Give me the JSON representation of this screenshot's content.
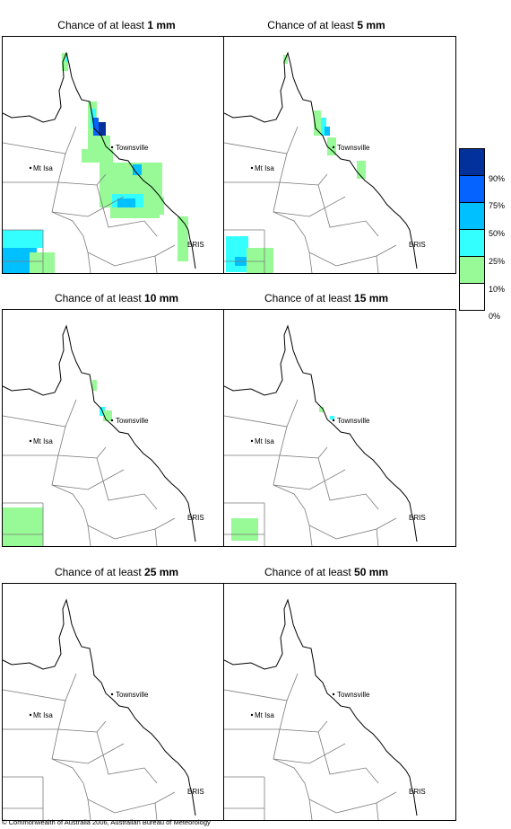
{
  "panels": [
    {
      "prefix": "Chance of at least ",
      "amount": "1 mm"
    },
    {
      "prefix": "Chance of at least ",
      "amount": "5 mm"
    },
    {
      "prefix": "Chance of at least ",
      "amount": "10 mm"
    },
    {
      "prefix": "Chance of at least ",
      "amount": "15 mm"
    },
    {
      "prefix": "Chance of at least ",
      "amount": "25 mm"
    },
    {
      "prefix": "Chance of at least ",
      "amount": "50 mm"
    }
  ],
  "places": {
    "townsville": "Townsville",
    "mt_isa": "Mt Isa",
    "brisbane": "BRIS"
  },
  "legend": {
    "labels": [
      "90%",
      "75%",
      "50%",
      "25%",
      "10%",
      "0%"
    ],
    "colors": [
      "#02319b",
      "#0563ff",
      "#00c0ff",
      "#33ffff",
      "#97fa97",
      "#ffffff"
    ]
  },
  "copyright": "© Commonwealth of Australia 2006, Australian Bureau of Meteorology"
}
